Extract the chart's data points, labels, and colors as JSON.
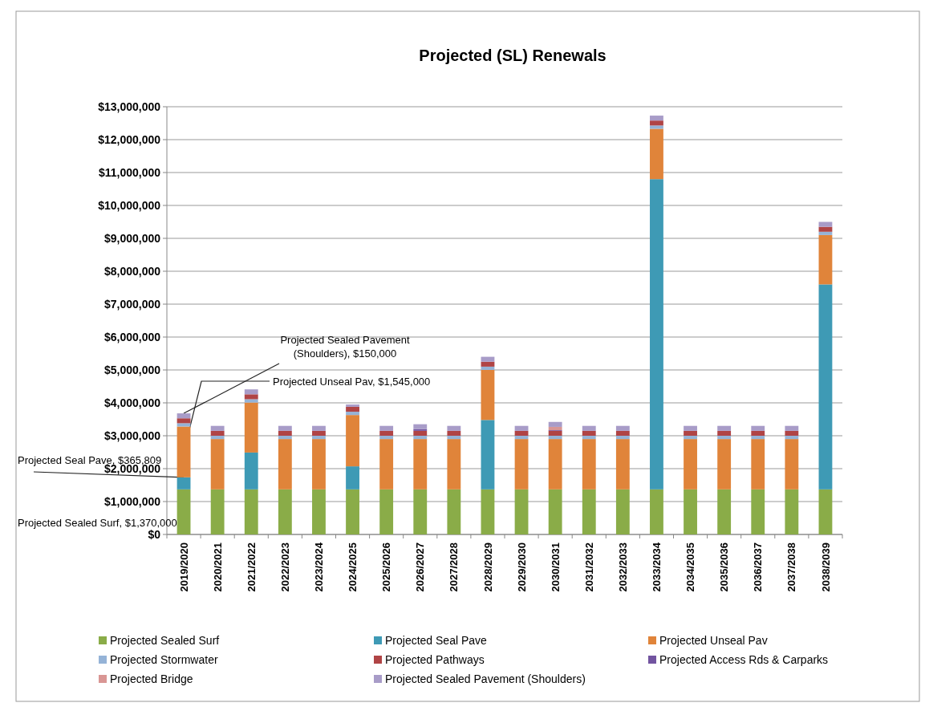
{
  "chart_data": {
    "type": "bar",
    "title": "Projected (SL) Renewals",
    "stacked": true,
    "grid": "y",
    "legend": "bottom",
    "categories": [
      "2019/2020",
      "2020/2021",
      "2021/2022",
      "2022/2023",
      "2023/2024",
      "2024/2025",
      "2025/2026",
      "2026/2027",
      "2027/2028",
      "2028/2029",
      "2029/2030",
      "2030/2031",
      "2031/2032",
      "2032/2033",
      "2033/2034",
      "2034/2035",
      "2035/2036",
      "2036/2037",
      "2037/2038",
      "2038/2039"
    ],
    "series": [
      {
        "name": "Projected Sealed Surf",
        "color": "#8aac48",
        "values": [
          1370000,
          1370000,
          1370000,
          1370000,
          1370000,
          1370000,
          1370000,
          1370000,
          1370000,
          1370000,
          1370000,
          1370000,
          1370000,
          1370000,
          1370000,
          1370000,
          1370000,
          1370000,
          1370000,
          1370000
        ]
      },
      {
        "name": "Projected Seal Pave",
        "color": "#3e9ab5",
        "values": [
          365809,
          0,
          1120000,
          0,
          0,
          700000,
          0,
          0,
          0,
          2110000,
          0,
          0,
          0,
          0,
          9430000,
          0,
          0,
          0,
          0,
          6230000
        ]
      },
      {
        "name": "Projected Unseal Pav",
        "color": "#e0843a",
        "values": [
          1545000,
          1530000,
          1520000,
          1530000,
          1530000,
          1560000,
          1530000,
          1530000,
          1530000,
          1520000,
          1530000,
          1530000,
          1530000,
          1530000,
          1530000,
          1530000,
          1530000,
          1530000,
          1530000,
          1500000
        ]
      },
      {
        "name": "Projected Stormwater",
        "color": "#95b3d7",
        "values": [
          100000,
          100000,
          100000,
          100000,
          100000,
          100000,
          100000,
          100000,
          100000,
          100000,
          100000,
          100000,
          100000,
          100000,
          100000,
          100000,
          100000,
          100000,
          100000,
          100000
        ]
      },
      {
        "name": "Projected Pathways",
        "color": "#b04445",
        "values": [
          150000,
          150000,
          150000,
          150000,
          150000,
          150000,
          150000,
          150000,
          150000,
          150000,
          150000,
          150000,
          150000,
          150000,
          150000,
          150000,
          150000,
          150000,
          150000,
          150000
        ]
      },
      {
        "name": "Projected Access Rds & Carparks",
        "color": "#7254a0",
        "values": [
          0,
          0,
          0,
          0,
          0,
          0,
          0,
          50000,
          0,
          0,
          0,
          20000,
          0,
          0,
          0,
          0,
          0,
          0,
          0,
          0
        ]
      },
      {
        "name": "Projected Bridge",
        "color": "#d99694",
        "values": [
          0,
          0,
          0,
          0,
          0,
          0,
          0,
          0,
          0,
          0,
          0,
          100000,
          0,
          0,
          0,
          0,
          0,
          0,
          0,
          0
        ]
      },
      {
        "name": "Projected Sealed Pavement (Shoulders)",
        "color": "#a89cc8",
        "values": [
          150000,
          150000,
          150000,
          150000,
          150000,
          70000,
          150000,
          150000,
          150000,
          150000,
          150000,
          150000,
          150000,
          150000,
          150000,
          150000,
          150000,
          150000,
          150000,
          150000
        ]
      }
    ],
    "ylim": [
      0,
      13000000
    ],
    "yticks": [
      {
        "value": 0,
        "label": "$0"
      },
      {
        "value": 1000000,
        "label": "$1,000,000"
      },
      {
        "value": 2000000,
        "label": "$2,000,000"
      },
      {
        "value": 3000000,
        "label": "$3,000,000"
      },
      {
        "value": 4000000,
        "label": "$4,000,000"
      },
      {
        "value": 5000000,
        "label": "$5,000,000"
      },
      {
        "value": 6000000,
        "label": "$6,000,000"
      },
      {
        "value": 7000000,
        "label": "$7,000,000"
      },
      {
        "value": 8000000,
        "label": "$8,000,000"
      },
      {
        "value": 9000000,
        "label": "$9,000,000"
      },
      {
        "value": 10000000,
        "label": "$10,000,000"
      },
      {
        "value": 11000000,
        "label": "$11,000,000"
      },
      {
        "value": 12000000,
        "label": "$12,000,000"
      },
      {
        "value": 13000000,
        "label": "$13,000,000"
      }
    ],
    "annotations": [
      {
        "text": "Projected Sealed Pavement (Shoulders), $150,000",
        "x": "2019/2020",
        "y": 3680809
      },
      "Projected Unseal Pav, $1,545,000",
      {
        "text": "Projected Seal Pave, $365,809",
        "x": "2019/2020",
        "y": 1735809
      },
      "Projected Sealed Surf, $1,370,000"
    ]
  }
}
